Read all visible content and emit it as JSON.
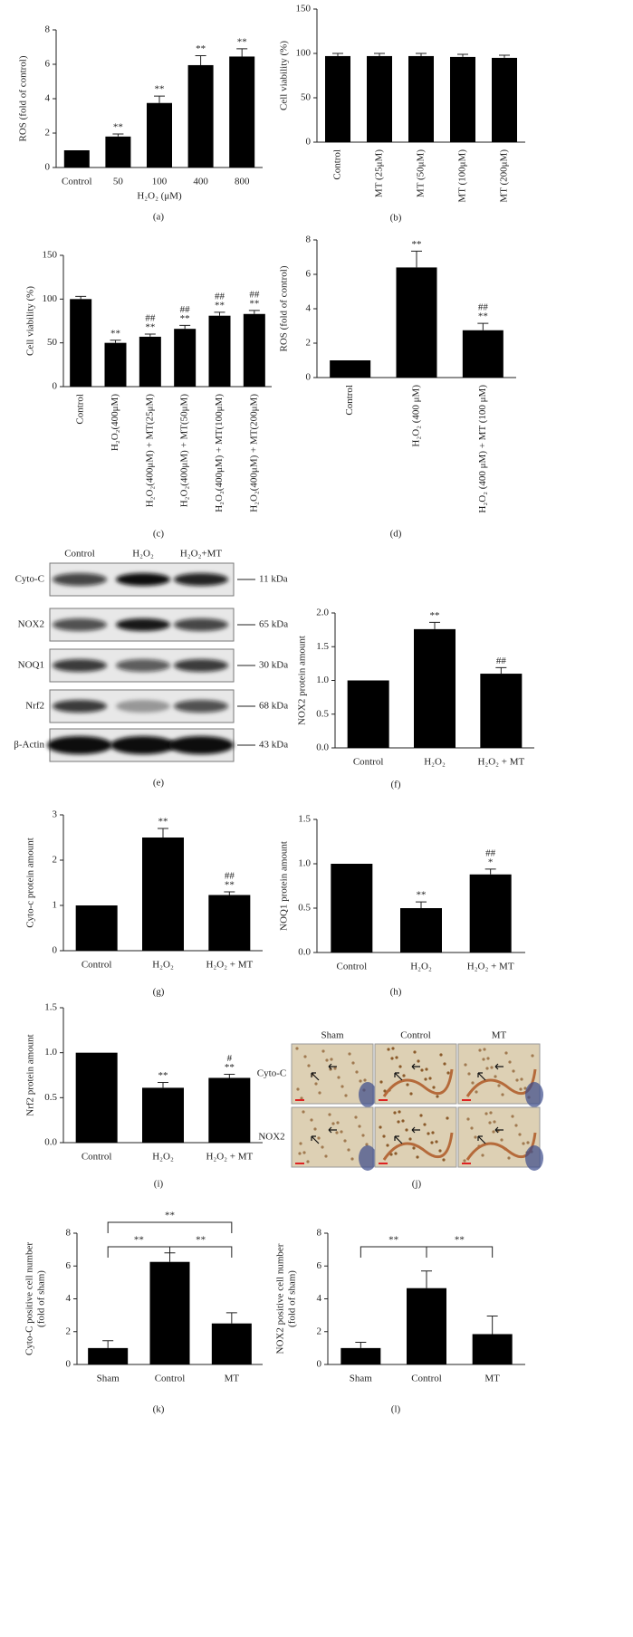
{
  "chart_data": [
    {
      "type": "bar",
      "panel": "(a)",
      "y_label": "ROS (fold of control)",
      "x_label": "H₂O₂ (μM)",
      "categories": [
        "Control",
        "50",
        "100",
        "400",
        "800"
      ],
      "values": [
        1,
        1.8,
        3.75,
        5.95,
        6.45
      ],
      "errors": [
        null,
        0.15,
        0.4,
        0.55,
        0.45
      ],
      "annotations": [
        null,
        "**",
        "**",
        "**",
        "**"
      ],
      "ylim": [
        0,
        8
      ],
      "yticks": [
        0,
        2,
        4,
        6,
        8
      ],
      "color": "#000000"
    },
    {
      "type": "bar",
      "panel": "(b)",
      "y_label": "Cell viability (%)",
      "categories": [
        "Control",
        "MT (25μM)",
        "MT (50μM)",
        "MT (100μM)",
        "MT (200μM)"
      ],
      "values": [
        97,
        97,
        97,
        96,
        95
      ],
      "errors": [
        3,
        3,
        3,
        3,
        3
      ],
      "ylim": [
        0,
        150
      ],
      "yticks": [
        0,
        50,
        100,
        150
      ],
      "color": "#000000"
    },
    {
      "type": "bar",
      "panel": "(c)",
      "y_label": "Cell viability (%)",
      "categories": [
        "Control",
        "H₂O₂(400μM)",
        "H₂O₂(400μM) + MT(25μM)",
        "H₂O₂(400μM) + MT(50μM)",
        "H₂O₂(400μM) + MT(100μM)",
        "H₂O₂(400μM) + MT(200μM)"
      ],
      "values": [
        100,
        50,
        57,
        66,
        81,
        83
      ],
      "errors": [
        3,
        3,
        3,
        4,
        4,
        4
      ],
      "annotations": [
        null,
        "**",
        "**",
        "**",
        "**",
        "**"
      ],
      "annotations_top": [
        null,
        null,
        "##",
        "##",
        "##",
        "##"
      ],
      "ylim": [
        0,
        150
      ],
      "yticks": [
        0,
        50,
        100,
        150
      ],
      "color": "#000000"
    },
    {
      "type": "bar",
      "panel": "(d)",
      "y_label": "ROS (fold of control)",
      "categories": [
        "Control",
        "H₂O₂ (400 μM)",
        "H₂O₂ (400 μM) + MT (100 μM)"
      ],
      "values": [
        1,
        6.4,
        2.75
      ],
      "errors": [
        null,
        0.95,
        0.4
      ],
      "annotations": [
        null,
        "**",
        "**"
      ],
      "annotations_top": [
        null,
        null,
        "##"
      ],
      "ylim": [
        0,
        8
      ],
      "yticks": [
        0,
        2,
        4,
        6,
        8
      ],
      "color": "#000000"
    },
    {
      "type": "bar",
      "panel": "(f)",
      "y_label": "NOX2 protein amount",
      "categories": [
        "Control",
        "H₂O₂",
        "H₂O₂ + MT"
      ],
      "values": [
        1,
        1.76,
        1.1
      ],
      "errors": [
        null,
        0.1,
        0.09
      ],
      "annotations": [
        null,
        "**",
        "##"
      ],
      "ylim": [
        0,
        2
      ],
      "yticks": [
        {
          "value": 0,
          "label": "0.0"
        },
        0.5,
        {
          "value": 1,
          "label": "1.0"
        },
        1.5,
        {
          "value": 2,
          "label": "2.0"
        }
      ],
      "color": "#000000"
    },
    {
      "type": "bar",
      "panel": "(g)",
      "y_label": "Cyto-c protein amount",
      "categories": [
        "Control",
        "H₂O₂",
        "H₂O₂ + MT"
      ],
      "values": [
        1,
        2.5,
        1.23
      ],
      "errors": [
        null,
        0.2,
        0.07
      ],
      "annotations": [
        null,
        "**",
        "**"
      ],
      "annotations_top": [
        null,
        null,
        "##"
      ],
      "ylim": [
        0,
        3
      ],
      "yticks": [
        0,
        1,
        2,
        3
      ],
      "color": "#000000"
    },
    {
      "type": "bar",
      "panel": "(h)",
      "y_label": "NOQ1 protein amount",
      "categories": [
        "Control",
        "H₂O₂",
        "H₂O₂ + MT"
      ],
      "values": [
        1,
        0.5,
        0.88
      ],
      "errors": [
        null,
        0.07,
        0.06
      ],
      "annotations": [
        null,
        "**",
        "*"
      ],
      "annotations_top": [
        null,
        null,
        "##"
      ],
      "ylim": [
        0,
        1.5
      ],
      "yticks": [
        {
          "value": 0,
          "label": "0.0"
        },
        0.5,
        {
          "value": 1,
          "label": "1.0"
        },
        1.5
      ],
      "color": "#000000"
    },
    {
      "type": "bar",
      "panel": "(i)",
      "y_label": "Nrf2 protein amount",
      "categories": [
        "Control",
        "H₂O₂",
        "H₂O₂ + MT"
      ],
      "values": [
        1,
        0.61,
        0.72
      ],
      "errors": [
        null,
        0.06,
        0.04
      ],
      "annotations": [
        null,
        "**",
        "**"
      ],
      "annotations_top": [
        null,
        null,
        "#"
      ],
      "ylim": [
        0,
        1.5
      ],
      "yticks": [
        {
          "value": 0,
          "label": "0.0"
        },
        0.5,
        {
          "value": 1,
          "label": "1.0"
        },
        1.5
      ],
      "color": "#000000"
    },
    {
      "type": "bar",
      "panel": "(k)",
      "y_label": [
        "Cyto-C positive cell number",
        "(fold of sham)"
      ],
      "categories": [
        "Sham",
        "Control",
        "MT"
      ],
      "values": [
        1,
        6.25,
        2.5
      ],
      "errors": [
        0.45,
        0.55,
        0.65
      ],
      "bracket_labels": [
        "**",
        "**",
        "**"
      ],
      "ylim": [
        0,
        8
      ],
      "yticks": [
        0,
        2,
        4,
        6,
        8
      ],
      "color": "#000000"
    },
    {
      "type": "bar",
      "panel": "(l)",
      "y_label": [
        "NOX2 positive cell number",
        "(fold of sham)"
      ],
      "categories": [
        "Sham",
        "Control",
        "MT"
      ],
      "values": [
        1,
        4.65,
        1.85
      ],
      "errors": [
        0.35,
        1.05,
        1.1
      ],
      "bracket_labels": [
        "**",
        "**"
      ],
      "ylim": [
        0,
        8
      ],
      "yticks": [
        0,
        2,
        4,
        6,
        8
      ],
      "color": "#000000"
    }
  ],
  "blot": {
    "panel": "(e)",
    "lanes": [
      "Control",
      "H₂O₂",
      "H₂O₂+MT"
    ],
    "rows": [
      {
        "protein": "Cyto-C",
        "size": "11 kDa"
      },
      {
        "protein": "NOX2",
        "size": "65 kDa"
      },
      {
        "protein": "NOQ1",
        "size": "30 kDa"
      },
      {
        "protein": "Nrf2",
        "size": "68 kDa"
      },
      {
        "protein": "β-Actin",
        "size": "43 kDa"
      }
    ]
  },
  "micrograph": {
    "panel": "(j)",
    "columns": [
      "Sham",
      "Control",
      "MT"
    ],
    "rows": [
      "Cyto-C",
      "NOX2"
    ]
  }
}
